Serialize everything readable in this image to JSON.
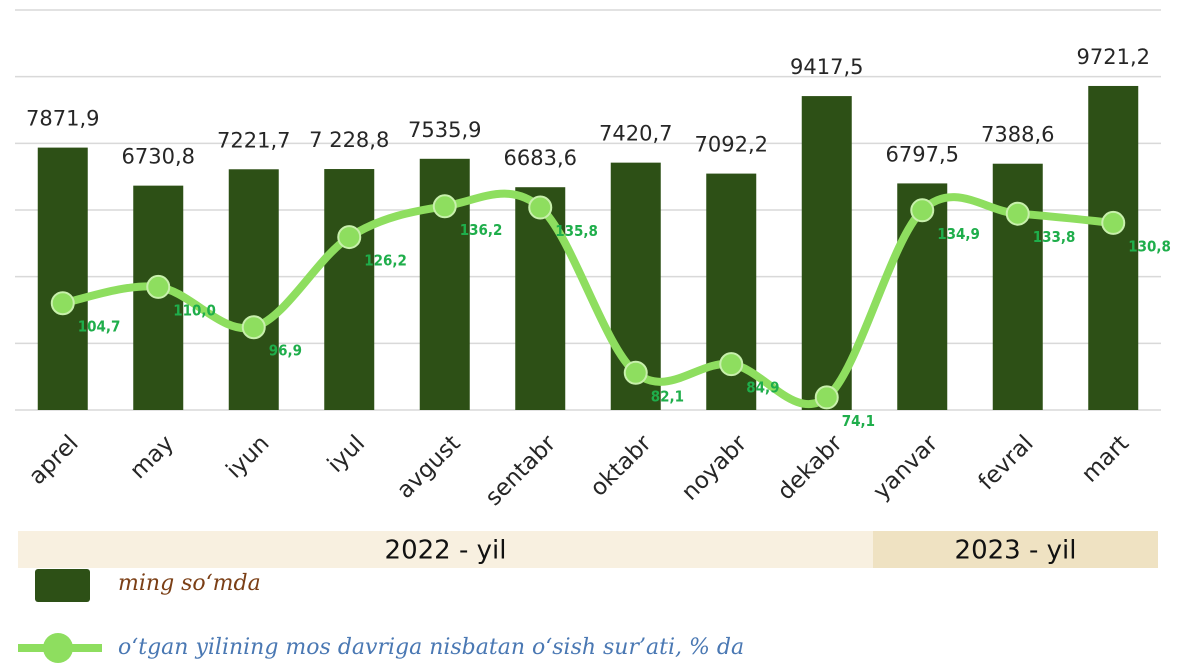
{
  "chart_data": {
    "type": "bar-line",
    "categories": [
      "aprel",
      "may",
      "iyun",
      "iyul",
      "avgust",
      "sentabr",
      "oktabr",
      "noyabr",
      "dekabr",
      "yanvar",
      "fevral",
      "mart"
    ],
    "series": [
      {
        "name": "ming so‘mda",
        "type": "bar",
        "color": "#2d5016",
        "values": [
          7871.9,
          6730.8,
          7221.7,
          7228.8,
          7535.9,
          6683.6,
          7420.7,
          7092.2,
          9417.5,
          6797.5,
          7388.6,
          9721.2
        ],
        "value_labels": [
          "7871,9",
          "6730,8",
          "7221,7",
          "7 228,8",
          "7535,9",
          "6683,6",
          "7420,7",
          "7092,2",
          "9417,5",
          "6797,5",
          "7388,6",
          "9721,2"
        ]
      },
      {
        "name": "o‘tgan yilining mos davriga nisbatan o‘sish sur’ati, % da",
        "type": "line",
        "axis": "y2",
        "color": "#8ede5f",
        "values": [
          104.7,
          110.0,
          96.9,
          126.2,
          136.2,
          135.8,
          82.1,
          84.9,
          74.1,
          134.9,
          133.8,
          130.8
        ],
        "value_labels": [
          "104,7",
          "110,0",
          "96,9",
          "126,2",
          "136,2",
          "135,8",
          "82,1",
          "84,9",
          "74,1",
          "134,9",
          "133,8",
          "130,8"
        ]
      }
    ],
    "ylim": [
      0,
      12000
    ],
    "yticks": [
      0,
      2000,
      4000,
      6000,
      8000,
      10000,
      12000
    ],
    "y2lim": [
      70,
      200
    ],
    "grid": true,
    "periods": [
      {
        "label": "2022 - yil",
        "months": 9,
        "color": "#f8f0e0"
      },
      {
        "label": "2023 - yil",
        "months": 3,
        "color": "#efe2c2"
      }
    ]
  }
}
